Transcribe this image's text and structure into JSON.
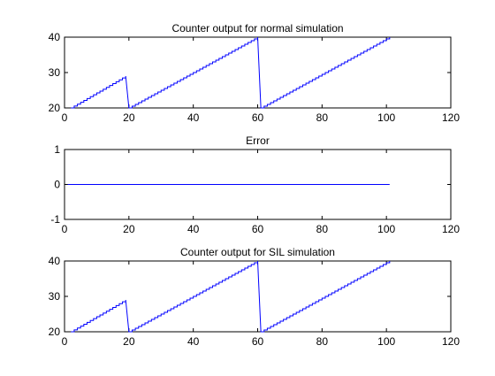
{
  "figure": {
    "background": "#ffffff",
    "line_color": "#0000ff"
  },
  "chart_data": [
    {
      "type": "line",
      "title": "Counter output for normal simulation",
      "xlabel": "",
      "ylabel": "",
      "xlim": [
        0,
        120
      ],
      "ylim": [
        20,
        40
      ],
      "xticks": [
        0,
        20,
        40,
        60,
        80,
        100,
        120
      ],
      "yticks": [
        20,
        30,
        40
      ],
      "xtick_labels": [
        "0",
        "20",
        "40",
        "60",
        "80",
        "100",
        "120"
      ],
      "ytick_labels": [
        "20",
        "30",
        "40"
      ],
      "grid": false,
      "series": [
        {
          "color": "#0000ff",
          "style": "staircase",
          "x": [
            2,
            19,
            20,
            60,
            61,
            101
          ],
          "y": [
            20,
            29,
            20,
            40,
            20,
            40
          ]
        }
      ]
    },
    {
      "type": "line",
      "title": "Error",
      "xlabel": "",
      "ylabel": "",
      "xlim": [
        0,
        120
      ],
      "ylim": [
        -1,
        1
      ],
      "xticks": [
        0,
        20,
        40,
        60,
        80,
        100,
        120
      ],
      "yticks": [
        -1,
        0,
        1
      ],
      "xtick_labels": [
        "0",
        "20",
        "40",
        "60",
        "80",
        "100",
        "120"
      ],
      "ytick_labels": [
        "-1",
        "0",
        "1"
      ],
      "grid": false,
      "series": [
        {
          "color": "#0000ff",
          "style": "line",
          "x": [
            1,
            101
          ],
          "y": [
            0,
            0
          ]
        }
      ]
    },
    {
      "type": "line",
      "title": "Counter output for SIL simulation",
      "xlabel": "",
      "ylabel": "",
      "xlim": [
        0,
        120
      ],
      "ylim": [
        20,
        40
      ],
      "xticks": [
        0,
        20,
        40,
        60,
        80,
        100,
        120
      ],
      "yticks": [
        20,
        30,
        40
      ],
      "xtick_labels": [
        "0",
        "20",
        "40",
        "60",
        "80",
        "100",
        "120"
      ],
      "ytick_labels": [
        "20",
        "30",
        "40"
      ],
      "grid": false,
      "series": [
        {
          "color": "#0000ff",
          "style": "staircase",
          "x": [
            2,
            19,
            20,
            60,
            61,
            101
          ],
          "y": [
            20,
            29,
            20,
            40,
            20,
            40
          ]
        }
      ]
    }
  ]
}
